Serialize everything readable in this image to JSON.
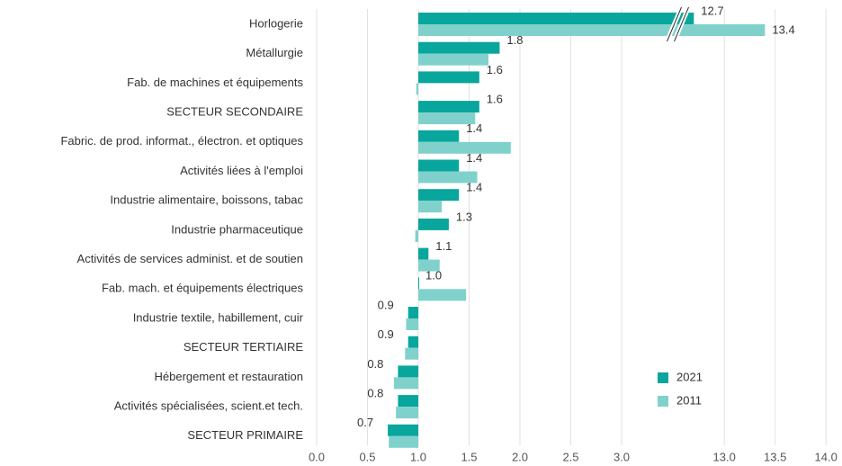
{
  "chart_data": {
    "type": "hbar",
    "categories": [
      "Horlogerie",
      "Métallurgie",
      "Fab. de machines et équipements",
      "SECTEUR SECONDAIRE",
      "Fabric. de prod. informat., électron. et optiques",
      "Activités liées à l'emploi",
      "Industrie alimentaire, boissons, tabac",
      "Industrie pharmaceutique",
      "Activités de services administ. et de soutien",
      "Fab. mach. et équipements électriques",
      "Industrie textile, habillement, cuir",
      "SECTEUR TERTIAIRE",
      "Hébergement et restauration",
      "Activités spécialisées, scient.et tech.",
      "SECTEUR PRIMAIRE"
    ],
    "series": [
      {
        "name": "2021",
        "color": "#08a69c",
        "values": [
          12.7,
          1.8,
          1.6,
          1.6,
          1.4,
          1.4,
          1.4,
          1.3,
          1.1,
          1.0,
          0.9,
          0.9,
          0.8,
          0.8,
          0.7
        ],
        "value_labels": [
          "12.7",
          "1.8",
          "1.6",
          "1.6",
          "1.4",
          "1.4",
          "1.4",
          "1.3",
          "1.1",
          "1.0",
          "0.9",
          "0.9",
          "0.8",
          "0.8",
          "0.7"
        ]
      },
      {
        "name": "2011",
        "color": "#80d1cc",
        "values": [
          13.4,
          1.69,
          0.98,
          1.56,
          1.91,
          1.58,
          1.23,
          0.97,
          1.21,
          1.47,
          0.88,
          0.87,
          0.76,
          0.78,
          0.71
        ],
        "value_labels": [
          "13.4",
          null,
          null,
          null,
          null,
          null,
          null,
          null,
          null,
          null,
          null,
          null,
          null,
          null,
          null
        ]
      }
    ],
    "base": 1,
    "xlim": [
      0,
      14
    ],
    "axis_break": [
      3.5,
      12.6
    ],
    "xticks": [
      {
        "value": 0,
        "label": "0.0"
      },
      0.5,
      {
        "value": 1,
        "label": "1.0"
      },
      1.5,
      {
        "value": 2,
        "label": "2.0"
      },
      2.5,
      {
        "value": 3,
        "label": "3.0"
      },
      {
        "value": 13,
        "label": "13.0"
      },
      13.5,
      {
        "value": 14,
        "label": "14.0"
      }
    ],
    "grid": true,
    "legend": "lower-right"
  }
}
